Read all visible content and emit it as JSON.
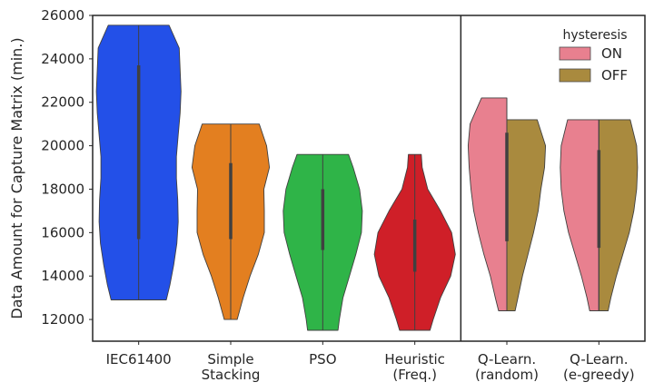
{
  "chart_data": {
    "type": "violin",
    "title": "",
    "xlabel": "",
    "ylabel": "Data Amount for Capture Matrix (min.)",
    "ylim": [
      11000,
      26000
    ],
    "yticks": [
      12000,
      14000,
      16000,
      18000,
      20000,
      22000,
      24000,
      26000
    ],
    "ytick_labels": [
      "12000",
      "14000",
      "16000",
      "18000",
      "20000",
      "22000",
      "24000",
      "26000"
    ],
    "grid": false,
    "categories": [
      {
        "line1": "IEC61400",
        "line2": ""
      },
      {
        "line1": "Simple",
        "line2": "Stacking"
      },
      {
        "line1": "PSO",
        "line2": ""
      },
      {
        "line1": "Heuristic",
        "line2": "(Freq.)"
      },
      {
        "line1": "Q-Learn.",
        "line2": "(random)"
      },
      {
        "line1": "Q-Learn.",
        "line2": "(e-greedy)"
      }
    ],
    "legend": {
      "title": "hysteresis",
      "placement": "top-right",
      "entries": [
        {
          "label": "ON",
          "color": "#e8808f"
        },
        {
          "label": "OFF",
          "color": "#a98a3e"
        }
      ]
    },
    "violins": [
      {
        "category": 0,
        "side": "full",
        "color": "#2350e8",
        "min": 12900,
        "max": 25550,
        "q1": 15700,
        "q3": 23700,
        "profile": [
          [
            12900,
            0.6
          ],
          [
            13600,
            0.68
          ],
          [
            14500,
            0.76
          ],
          [
            15500,
            0.83
          ],
          [
            16500,
            0.86
          ],
          [
            17500,
            0.85
          ],
          [
            18500,
            0.82
          ],
          [
            19500,
            0.82
          ],
          [
            20500,
            0.86
          ],
          [
            21500,
            0.9
          ],
          [
            22500,
            0.92
          ],
          [
            23500,
            0.9
          ],
          [
            24500,
            0.88
          ],
          [
            25550,
            0.66
          ]
        ]
      },
      {
        "category": 1,
        "side": "full",
        "color": "#e37f20",
        "min": 12000,
        "max": 21000,
        "q1": 15700,
        "q3": 19200,
        "profile": [
          [
            12000,
            0.14
          ],
          [
            13000,
            0.27
          ],
          [
            14000,
            0.42
          ],
          [
            15000,
            0.6
          ],
          [
            16000,
            0.73
          ],
          [
            17000,
            0.73
          ],
          [
            18000,
            0.72
          ],
          [
            19000,
            0.84
          ],
          [
            20000,
            0.78
          ],
          [
            21000,
            0.62
          ]
        ]
      },
      {
        "category": 2,
        "side": "full",
        "color": "#2fb448",
        "min": 11500,
        "max": 19600,
        "q1": 15200,
        "q3": 18000,
        "profile": [
          [
            11500,
            0.33
          ],
          [
            12000,
            0.36
          ],
          [
            13000,
            0.44
          ],
          [
            14000,
            0.58
          ],
          [
            15000,
            0.72
          ],
          [
            16000,
            0.84
          ],
          [
            17000,
            0.86
          ],
          [
            18000,
            0.8
          ],
          [
            19000,
            0.66
          ],
          [
            19600,
            0.56
          ]
        ]
      },
      {
        "category": 3,
        "side": "full",
        "color": "#cf1f28",
        "min": 11500,
        "max": 19600,
        "q1": 14200,
        "q3": 16600,
        "profile": [
          [
            11500,
            0.33
          ],
          [
            12000,
            0.4
          ],
          [
            13000,
            0.56
          ],
          [
            14000,
            0.78
          ],
          [
            15000,
            0.88
          ],
          [
            16000,
            0.8
          ],
          [
            17000,
            0.56
          ],
          [
            18000,
            0.28
          ],
          [
            19000,
            0.16
          ],
          [
            19600,
            0.14
          ]
        ]
      },
      {
        "category": 4,
        "side": "left",
        "color": "#e8808f",
        "min": 12400,
        "max": 22200,
        "q1": 15600,
        "q3": 20600,
        "profile": [
          [
            12400,
            0.18
          ],
          [
            13000,
            0.25
          ],
          [
            14000,
            0.36
          ],
          [
            15000,
            0.5
          ],
          [
            16000,
            0.62
          ],
          [
            17000,
            0.72
          ],
          [
            18000,
            0.78
          ],
          [
            19000,
            0.82
          ],
          [
            20000,
            0.84
          ],
          [
            21000,
            0.8
          ],
          [
            22200,
            0.55
          ]
        ]
      },
      {
        "category": 4,
        "side": "right",
        "color": "#a98a3e",
        "min": 12400,
        "max": 21200,
        "q1": 15600,
        "q3": 20600,
        "profile": [
          [
            12400,
            0.18
          ],
          [
            13000,
            0.24
          ],
          [
            14000,
            0.34
          ],
          [
            15000,
            0.46
          ],
          [
            16000,
            0.58
          ],
          [
            17000,
            0.68
          ],
          [
            18000,
            0.74
          ],
          [
            19000,
            0.82
          ],
          [
            20000,
            0.84
          ],
          [
            21200,
            0.66
          ]
        ]
      },
      {
        "category": 5,
        "side": "left",
        "color": "#e8808f",
        "min": 12400,
        "max": 21200,
        "q1": 15300,
        "q3": 19800,
        "profile": [
          [
            12400,
            0.2
          ],
          [
            13000,
            0.26
          ],
          [
            14000,
            0.38
          ],
          [
            15000,
            0.52
          ],
          [
            16000,
            0.66
          ],
          [
            17000,
            0.76
          ],
          [
            18000,
            0.82
          ],
          [
            19000,
            0.84
          ],
          [
            20000,
            0.82
          ],
          [
            21200,
            0.68
          ]
        ]
      },
      {
        "category": 5,
        "side": "right",
        "color": "#a98a3e",
        "min": 12400,
        "max": 21200,
        "q1": 15300,
        "q3": 19800,
        "profile": [
          [
            12400,
            0.2
          ],
          [
            13000,
            0.26
          ],
          [
            14000,
            0.38
          ],
          [
            15000,
            0.52
          ],
          [
            16000,
            0.66
          ],
          [
            17000,
            0.76
          ],
          [
            18000,
            0.82
          ],
          [
            19000,
            0.84
          ],
          [
            20000,
            0.82
          ],
          [
            21200,
            0.68
          ]
        ]
      }
    ],
    "divider_after_category": 3
  }
}
